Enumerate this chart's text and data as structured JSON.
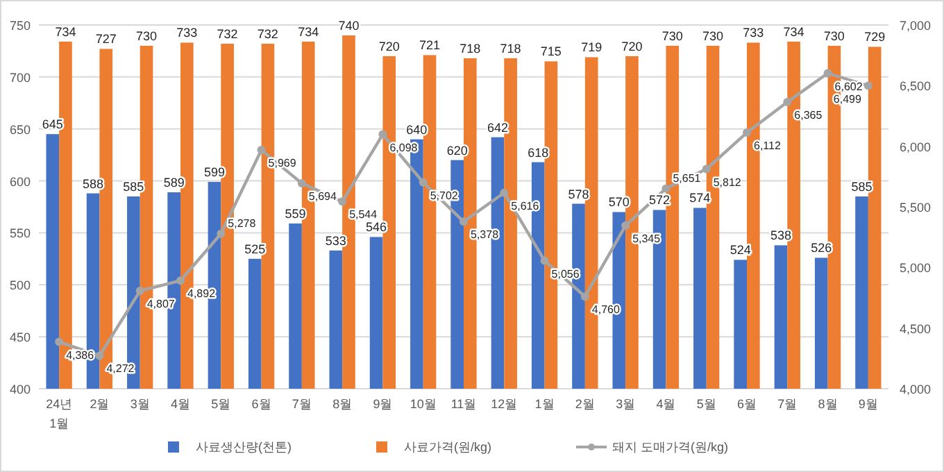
{
  "chart_data": {
    "type": "bar",
    "categories": [
      "24년\n1월",
      "2월",
      "3월",
      "4월",
      "5월",
      "6월",
      "7월",
      "8월",
      "9월",
      "10월",
      "11월",
      "12월",
      "1월",
      "2월",
      "3월",
      "4월",
      "5월",
      "6월",
      "7월",
      "8월",
      "9월"
    ],
    "series": [
      {
        "name": "사료생산량(천톤)",
        "color": "#4472c4",
        "values": [
          645,
          588,
          585,
          589,
          599,
          525,
          559,
          533,
          546,
          640,
          620,
          642,
          618,
          578,
          570,
          572,
          574,
          524,
          538,
          526,
          585
        ]
      },
      {
        "name": "사료가격(원/kg)",
        "color": "#ed7d31",
        "values": [
          734,
          727,
          730,
          733,
          732,
          732,
          734,
          740,
          720,
          721,
          718,
          718,
          715,
          719,
          720,
          730,
          730,
          733,
          734,
          730,
          729
        ]
      },
      {
        "name": "돼지 도매가격(원/kg)",
        "color": "#a5a5a5",
        "type": "line",
        "axis": "y2",
        "marker": "circle",
        "values": [
          4386,
          4272,
          4807,
          4892,
          5278,
          5969,
          5694,
          5544,
          6098,
          5702,
          5378,
          5616,
          5056,
          4760,
          5345,
          5651,
          5812,
          6112,
          6365,
          6602,
          6499
        ],
        "value_labels": [
          "4,386",
          "4,272",
          "4,807",
          "4,892",
          "5,278",
          "5,969",
          "5,694",
          "5,544",
          "6,098",
          "5,702",
          "5,378",
          "5,616",
          "5,056",
          "4,760",
          "5,345",
          "5,651",
          "5,812",
          "6,112",
          "6,365",
          "6,602",
          "6,499"
        ]
      }
    ],
    "ylim": [
      400,
      750
    ],
    "yticks": [
      400,
      450,
      500,
      550,
      600,
      650,
      700,
      750
    ],
    "y2lim": [
      4000,
      7000
    ],
    "y2ticks": [
      {
        "value": 4000,
        "label": "4,000"
      },
      {
        "value": 4500,
        "label": "4,500"
      },
      {
        "value": 5000,
        "label": "5,000"
      },
      {
        "value": 5500,
        "label": "5,500"
      },
      {
        "value": 6000,
        "label": "6,000"
      },
      {
        "value": 6500,
        "label": "6,500"
      },
      {
        "value": 7000,
        "label": "7,000"
      }
    ],
    "grid": "y",
    "legend": "bottom",
    "data_labels": true
  }
}
